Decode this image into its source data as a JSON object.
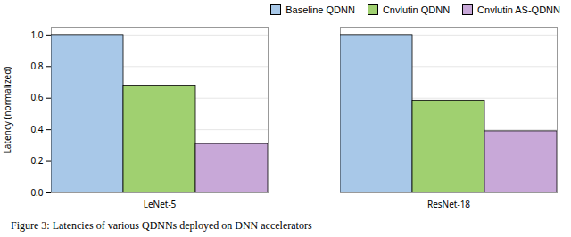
{
  "chart_data": {
    "type": "bar",
    "caption": "Figure 3: Latencies of various QDNNs deployed on DNN accelerators",
    "categories": [
      "LeNet-5",
      "ResNet-18"
    ],
    "series": [
      {
        "name": "Baseline QDNN",
        "color": "#a8c8e8",
        "values": [
          1.0,
          1.0
        ]
      },
      {
        "name": "Cnvlutin QDNN",
        "color": "#a0d070",
        "values": [
          0.68,
          0.585
        ]
      },
      {
        "name": "Cnvlutin AS-QDNN",
        "color": "#c8a8d8",
        "values": [
          0.31,
          0.39
        ]
      }
    ],
    "ylabel": "Latency (normalized)",
    "ylim": [
      0,
      1.05
    ],
    "yticks": [
      {
        "value": 0.0,
        "label": "0.0"
      },
      0.2,
      0.4,
      0.6,
      0.8,
      {
        "value": 1.0,
        "label": "1.0"
      }
    ],
    "grid": true,
    "legend": "upper right"
  }
}
